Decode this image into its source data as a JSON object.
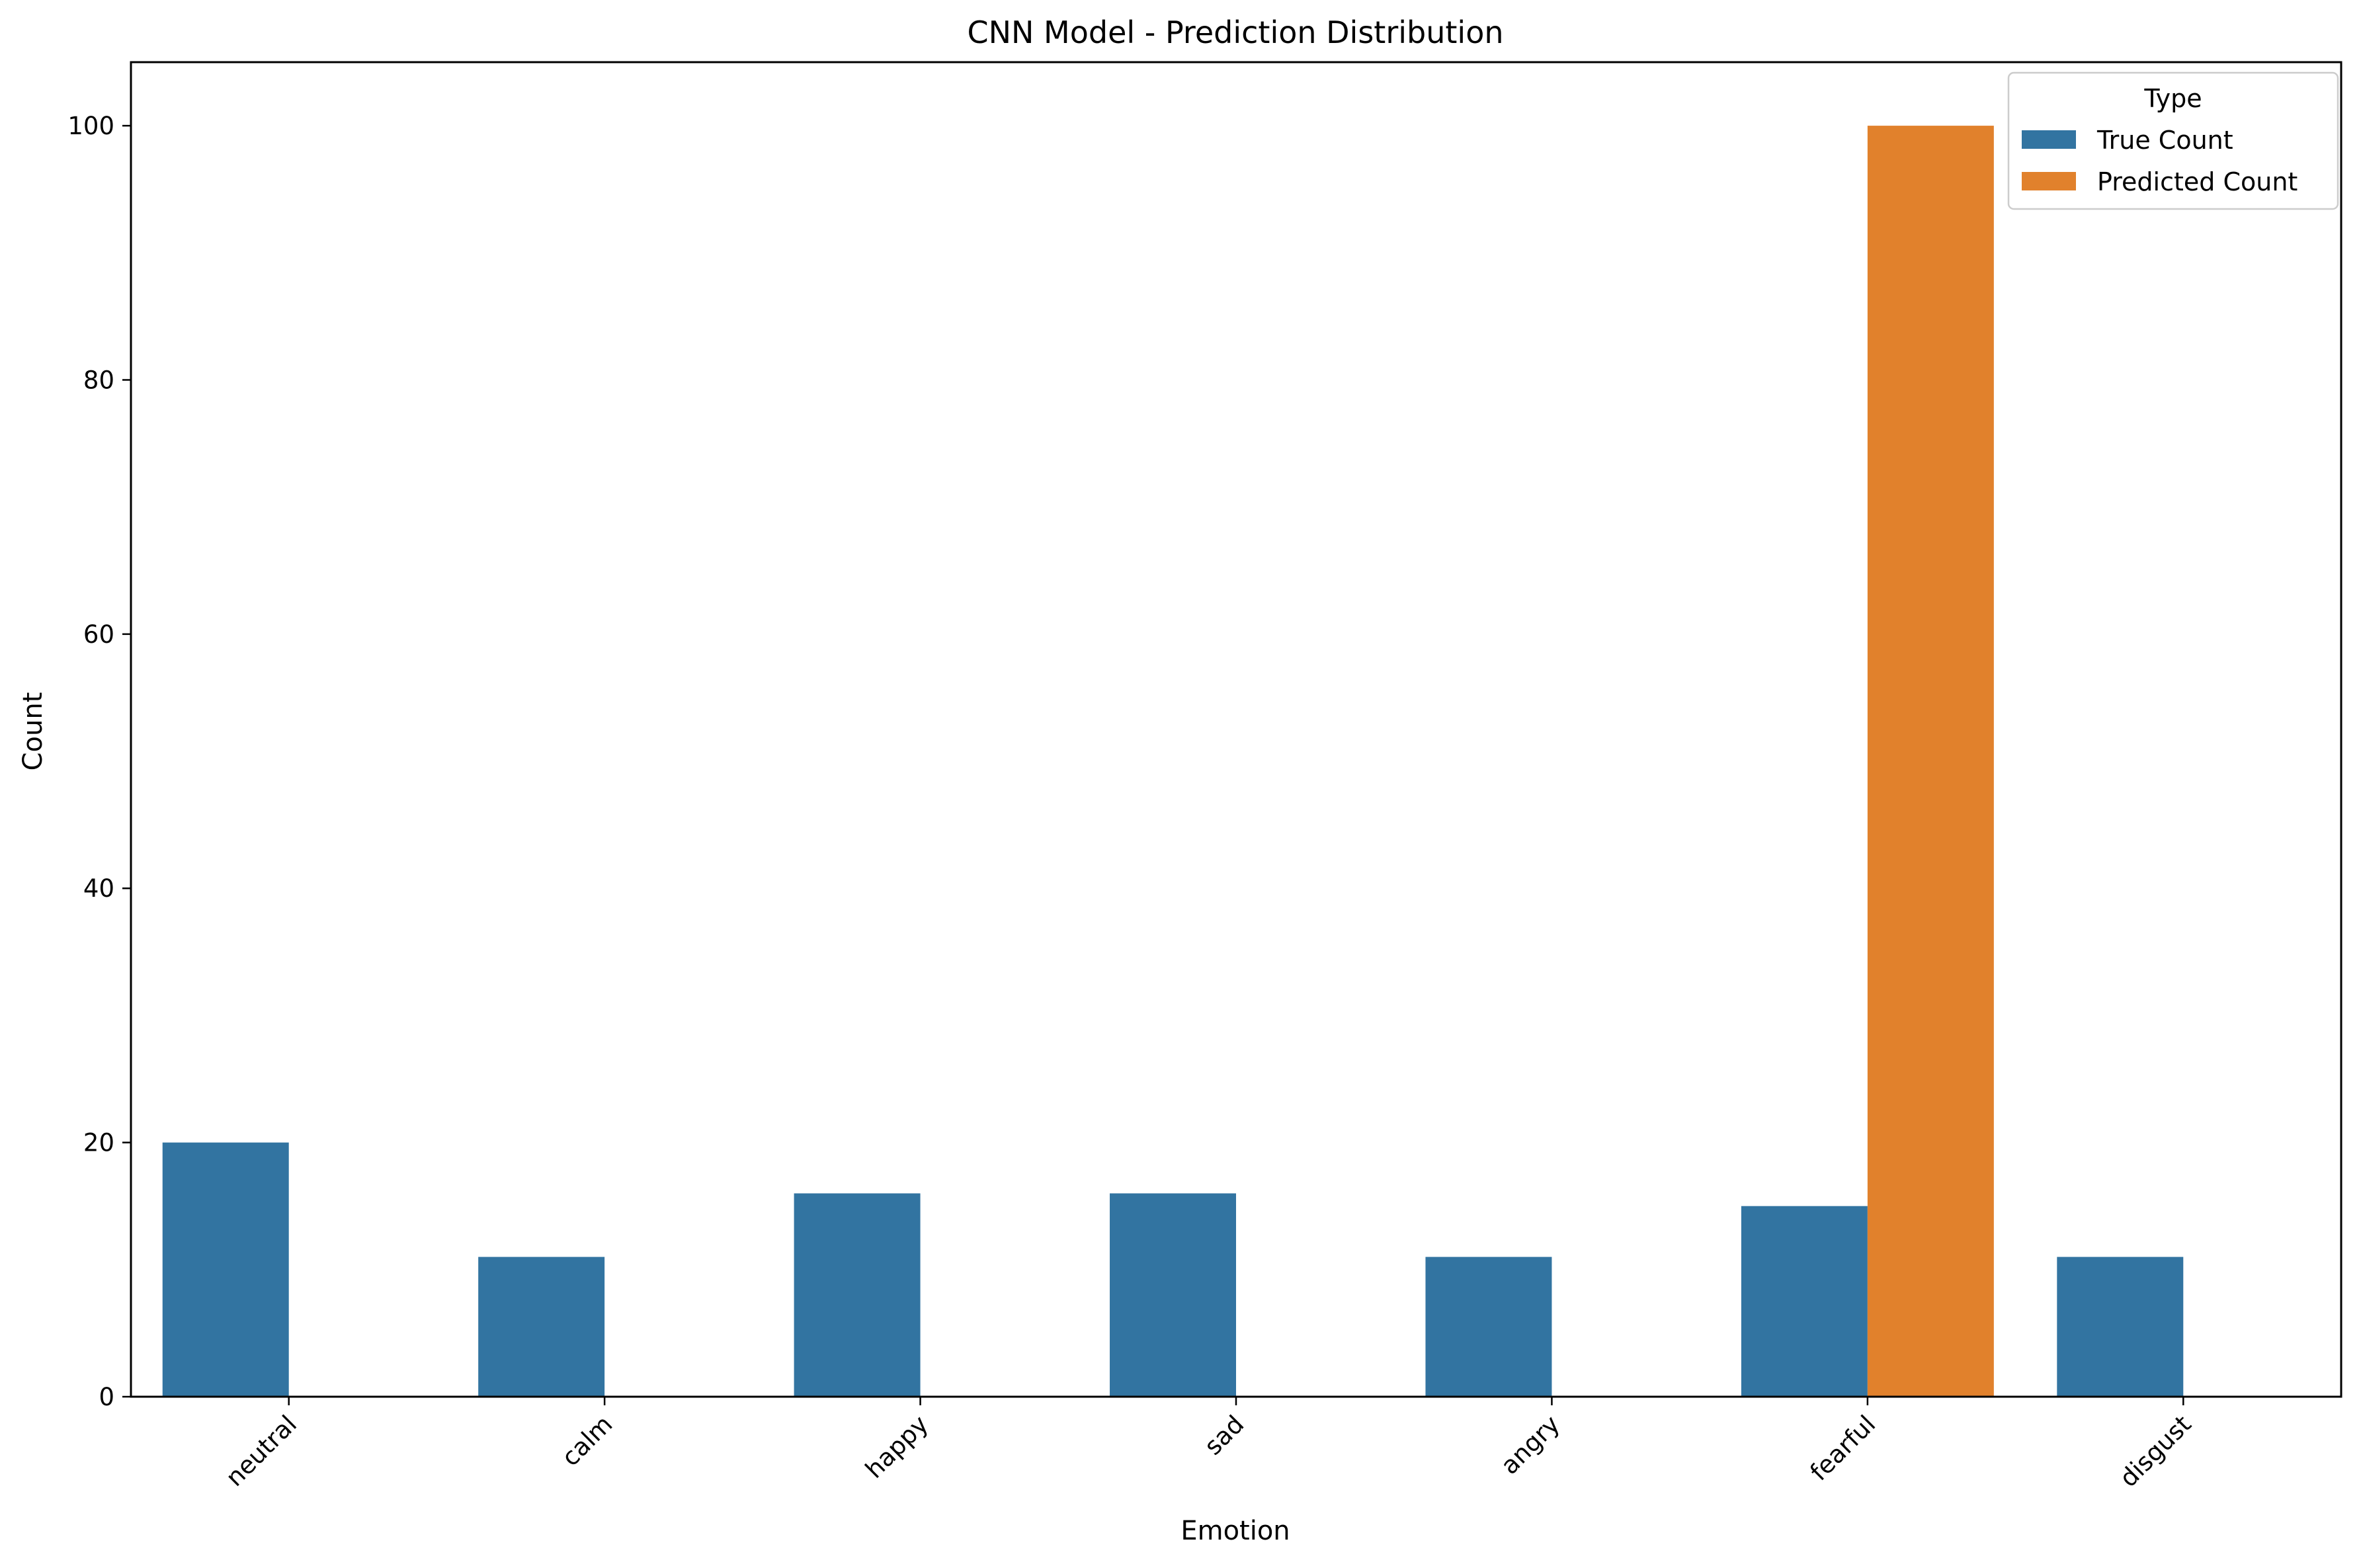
{
  "chart_data": {
    "type": "bar",
    "title": "CNN Model - Prediction Distribution",
    "xlabel": "Emotion",
    "ylabel": "Count",
    "categories": [
      "neutral",
      "calm",
      "happy",
      "sad",
      "angry",
      "fearful",
      "disgust"
    ],
    "series": [
      {
        "name": "True Count",
        "color": "#3274a1",
        "values": [
          20,
          11,
          16,
          16,
          11,
          15,
          11
        ]
      },
      {
        "name": "Predicted Count",
        "color": "#e1812c",
        "values": [
          0,
          0,
          0,
          0,
          0,
          100,
          0
        ]
      }
    ],
    "ylim": [
      0,
      105
    ],
    "yticks": [
      0,
      20,
      40,
      60,
      80,
      100
    ],
    "grid": false,
    "legend": {
      "title": "Type",
      "position": "top-right"
    }
  }
}
